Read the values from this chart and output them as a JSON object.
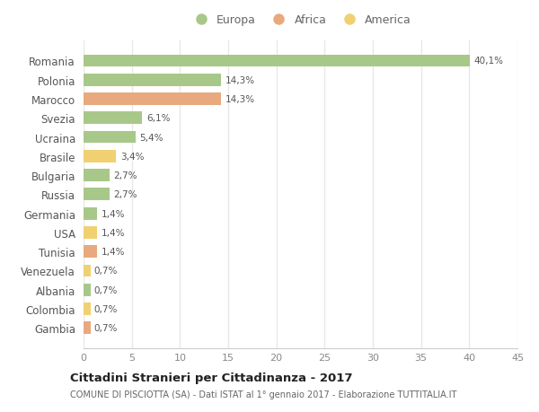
{
  "categories": [
    "Romania",
    "Polonia",
    "Marocco",
    "Svezia",
    "Ucraina",
    "Brasile",
    "Bulgaria",
    "Russia",
    "Germania",
    "USA",
    "Tunisia",
    "Venezuela",
    "Albania",
    "Colombia",
    "Gambia"
  ],
  "values": [
    40.1,
    14.3,
    14.3,
    6.1,
    5.4,
    3.4,
    2.7,
    2.7,
    1.4,
    1.4,
    1.4,
    0.7,
    0.7,
    0.7,
    0.7
  ],
  "labels": [
    "40,1%",
    "14,3%",
    "14,3%",
    "6,1%",
    "5,4%",
    "3,4%",
    "2,7%",
    "2,7%",
    "1,4%",
    "1,4%",
    "1,4%",
    "0,7%",
    "0,7%",
    "0,7%",
    "0,7%"
  ],
  "continents": [
    "Europa",
    "Europa",
    "Africa",
    "Europa",
    "Europa",
    "America",
    "Europa",
    "Europa",
    "Europa",
    "America",
    "Africa",
    "America",
    "Europa",
    "America",
    "Africa"
  ],
  "colors": {
    "Europa": "#a8c88a",
    "Africa": "#e8a97e",
    "America": "#f0d070"
  },
  "xlim": [
    0,
    45
  ],
  "xticks": [
    0,
    5,
    10,
    15,
    20,
    25,
    30,
    35,
    40,
    45
  ],
  "title": "Cittadini Stranieri per Cittadinanza - 2017",
  "subtitle": "COMUNE DI PISCIOTTA (SA) - Dati ISTAT al 1° gennaio 2017 - Elaborazione TUTTITALIA.IT",
  "background_color": "#ffffff",
  "plot_background": "#ffffff",
  "grid_color": "#e8e8e8",
  "bar_height": 0.65,
  "legend_labels": [
    "Europa",
    "Africa",
    "America"
  ]
}
